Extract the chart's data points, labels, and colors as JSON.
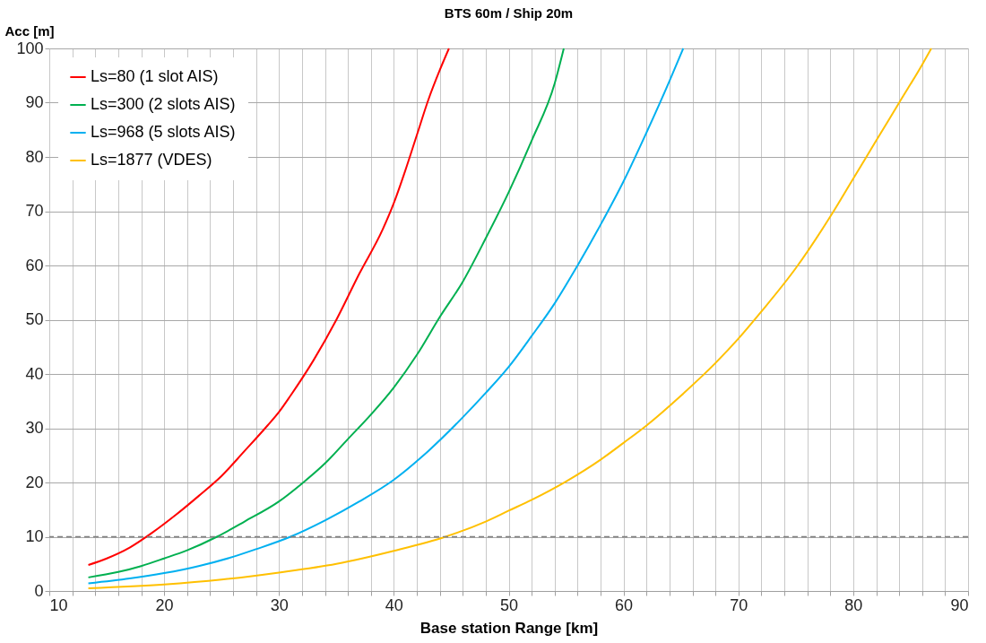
{
  "chart_data": {
    "type": "line",
    "title": "BTS 60m / Ship 20m",
    "xlabel": "Base station Range [km]",
    "ylabel": "Acc [m]",
    "xlim": [
      10,
      90
    ],
    "ylim": [
      0,
      100
    ],
    "xticks": [
      10,
      {
        "value": 12,
        "label": null
      },
      {
        "value": 14,
        "label": null
      },
      {
        "value": 16,
        "label": null
      },
      {
        "value": 18,
        "label": null
      },
      20,
      {
        "value": 22,
        "label": null
      },
      {
        "value": 24,
        "label": null
      },
      {
        "value": 26,
        "label": null
      },
      {
        "value": 28,
        "label": null
      },
      30,
      {
        "value": 32,
        "label": null
      },
      {
        "value": 34,
        "label": null
      },
      {
        "value": 36,
        "label": null
      },
      {
        "value": 38,
        "label": null
      },
      40,
      {
        "value": 42,
        "label": null
      },
      {
        "value": 44,
        "label": null
      },
      {
        "value": 46,
        "label": null
      },
      {
        "value": 48,
        "label": null
      },
      50,
      {
        "value": 52,
        "label": null
      },
      {
        "value": 54,
        "label": null
      },
      {
        "value": 56,
        "label": null
      },
      {
        "value": 58,
        "label": null
      },
      60,
      {
        "value": 62,
        "label": null
      },
      {
        "value": 64,
        "label": null
      },
      {
        "value": 66,
        "label": null
      },
      {
        "value": 68,
        "label": null
      },
      70,
      {
        "value": 72,
        "label": null
      },
      {
        "value": 74,
        "label": null
      },
      {
        "value": 76,
        "label": null
      },
      {
        "value": 78,
        "label": null
      },
      80,
      {
        "value": 82,
        "label": null
      },
      {
        "value": 84,
        "label": null
      },
      {
        "value": 86,
        "label": null
      },
      {
        "value": 88,
        "label": null
      },
      90
    ],
    "yticks": [
      0,
      10,
      20,
      30,
      40,
      50,
      60,
      70,
      80,
      90,
      100
    ],
    "grid": true,
    "legend": "top left",
    "marker": "none",
    "line_style": "solid",
    "ref_lines": [
      {
        "axis": "y",
        "value": 10,
        "label": null,
        "color": "#808080",
        "line_style": "dashed"
      }
    ],
    "series": [
      {
        "name": "Ls=80 (1 slot AIS)",
        "color": "#ff0000",
        "x": [
          13.4,
          15,
          17,
          19,
          21,
          23,
          25,
          27,
          29,
          30,
          31,
          33,
          35,
          37,
          39,
          40,
          41,
          42,
          43,
          44,
          44.8
        ],
        "values": [
          4.8,
          6,
          8,
          10.8,
          14,
          17.5,
          21.2,
          25.8,
          30.5,
          33,
          36,
          42.5,
          50,
          58.5,
          66.5,
          71.5,
          77.5,
          84,
          90.5,
          96,
          100
        ]
      },
      {
        "name": "Ls=300 (2 slots AIS)",
        "color": "#00b050",
        "x": [
          13.4,
          16,
          18,
          20,
          22,
          24.6,
          27,
          30,
          32,
          34,
          36,
          38,
          40,
          42,
          44,
          46,
          48,
          50,
          52,
          54,
          54.8
        ],
        "values": [
          2.5,
          3.5,
          4.6,
          6,
          7.5,
          10,
          12.8,
          16.5,
          19.8,
          23.5,
          28,
          32.5,
          37.5,
          43.5,
          50.5,
          57,
          65,
          73.5,
          83,
          93.5,
          100
        ]
      },
      {
        "name": "Ls=968 (5 slots AIS)",
        "color": "#00b0f0",
        "x": [
          13.4,
          17,
          20,
          23,
          26,
          28,
          31,
          34,
          37,
          40,
          43,
          46,
          48,
          50,
          52,
          54,
          56,
          58,
          60,
          62,
          64,
          65.2
        ],
        "values": [
          1.4,
          2.3,
          3.3,
          4.6,
          6.3,
          7.7,
          10,
          13,
          16.5,
          20.5,
          25.8,
          32,
          36.5,
          41.3,
          47,
          53,
          60,
          67.5,
          75.5,
          84.5,
          94,
          100
        ]
      },
      {
        "name": "Ls=1877 (VDES)",
        "color": "#ffc000",
        "x": [
          13.4,
          20,
          25,
          30,
          35,
          40,
          44.5,
          48,
          50,
          52,
          55,
          58,
          60,
          62,
          65,
          68,
          70,
          72,
          75,
          78,
          80,
          82,
          84,
          86,
          86.8
        ],
        "values": [
          0.5,
          1.2,
          2.1,
          3.4,
          5,
          7.4,
          10,
          12.8,
          14.8,
          16.8,
          20.2,
          24.2,
          27.3,
          30.5,
          36,
          42,
          46.5,
          51.5,
          59.5,
          69,
          76,
          83,
          90,
          97,
          100
        ]
      }
    ]
  }
}
